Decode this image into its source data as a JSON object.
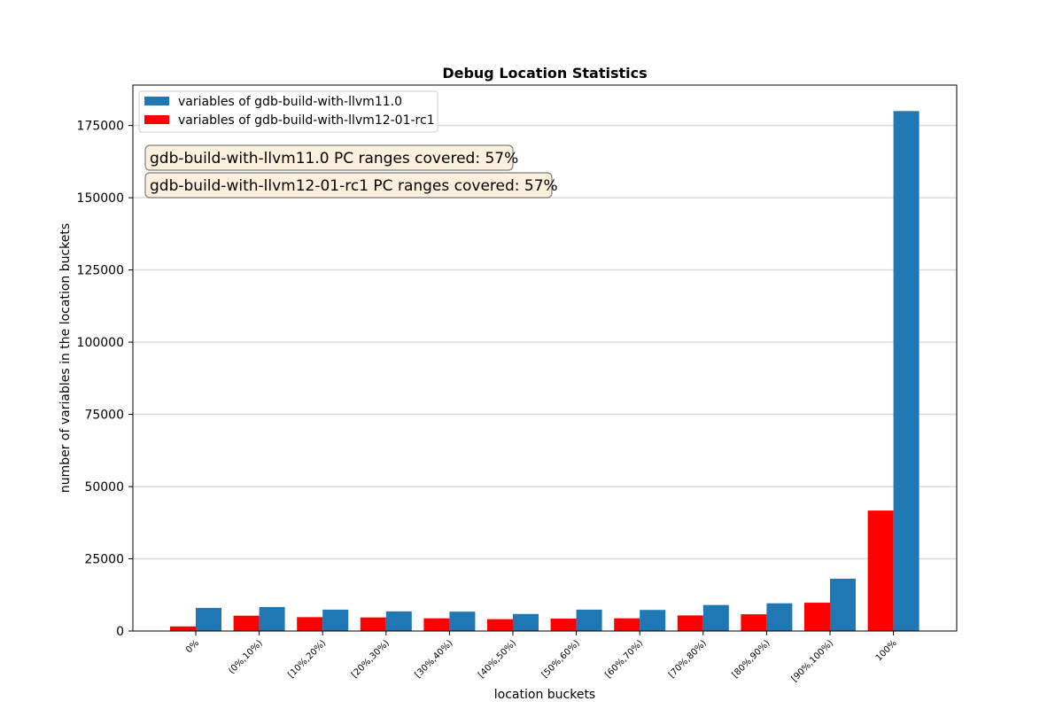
{
  "chart_data": {
    "type": "bar",
    "title": "Debug Location Statistics",
    "xlabel": "location buckets",
    "ylabel": "number of variables in the location buckets",
    "categories": [
      "0%",
      "(0%,10%)",
      "[10%,20%)",
      "[20%,30%)",
      "[30%,40%)",
      "[40%,50%)",
      "[50%,60%)",
      "[60%,70%)",
      "[70%,80%)",
      "[80%,90%)",
      "[90%,100%)",
      "100%"
    ],
    "series": [
      {
        "name": "variables of gdb-build-with-llvm11.0",
        "color": "#1f77b4",
        "values": [
          8000,
          8300,
          7400,
          6800,
          6700,
          5900,
          7400,
          7300,
          9000,
          9600,
          18100,
          180000
        ]
      },
      {
        "name": "variables of gdb-build-with-llvm12-01-rc1",
        "color": "#ff0000",
        "values": [
          1600,
          5300,
          4800,
          4700,
          4400,
          4100,
          4300,
          4400,
          5400,
          5800,
          9800,
          41700
        ]
      }
    ],
    "yticks": [
      0,
      25000,
      50000,
      75000,
      100000,
      125000,
      150000,
      175000
    ],
    "ylim": [
      0,
      189000
    ],
    "grid": "horizontal",
    "legend_position": "upper-left",
    "annotations": [
      "gdb-build-with-llvm11.0 PC ranges covered: 57%",
      "gdb-build-with-llvm12-01-rc1 PC ranges covered: 57%"
    ],
    "annotation_bg": "#fdf0dc"
  }
}
